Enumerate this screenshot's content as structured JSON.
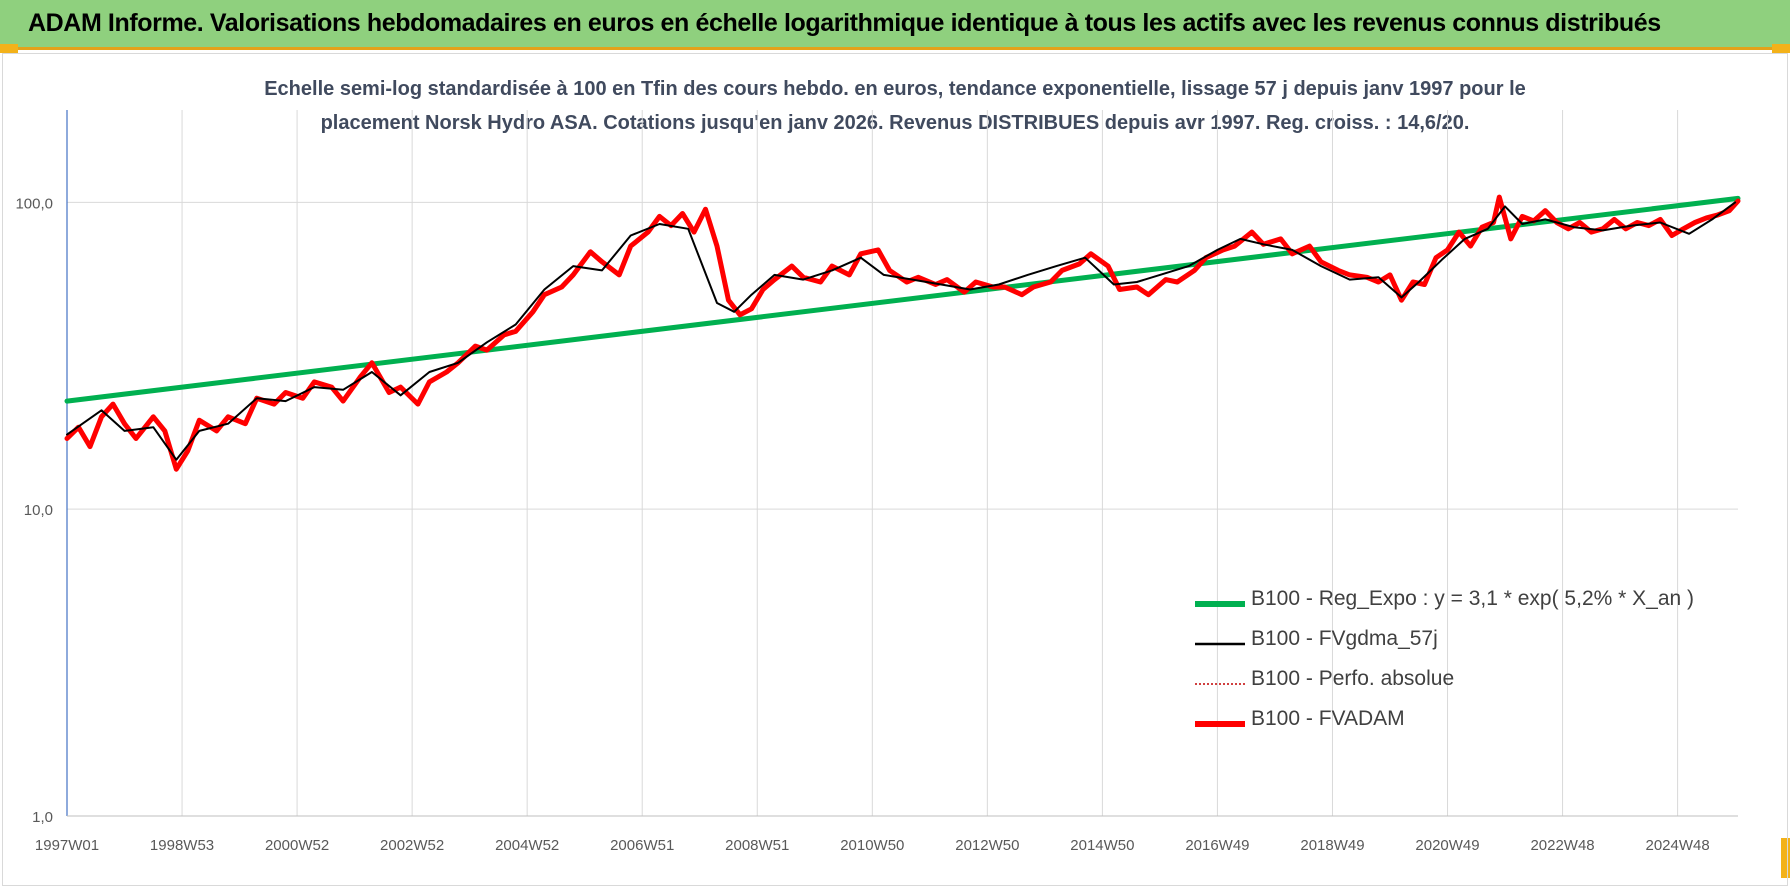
{
  "banner": {
    "title": "ADAM Informe. Valorisations hebdomadaires en euros en échelle logarithmique identique à tous les actifs avec les revenus connus distribués",
    "color": "#8fd07e"
  },
  "chart_data": {
    "type": "line",
    "title_line1": "Echelle semi-log standardisée à 100 en Tfin des cours hebdo. en euros, tendance exponentielle, lissage 57 j depuis janv 1997 pour le",
    "title_line2": "placement Norsk Hydro ASA. Cotations jusqu'en janv 2026. Revenus DISTRIBUES depuis avr 1997. Reg. croiss. : 14,6/20.",
    "y_scale": "log",
    "ylim": [
      1,
      200
    ],
    "y_ticks": [
      1,
      10,
      100
    ],
    "y_tick_labels": [
      "1,0",
      "10,0",
      "100,0"
    ],
    "xlim": [
      1997.0,
      2026.05
    ],
    "x_ticks": [
      1997.0,
      1999.0,
      2001.0,
      2003.0,
      2005.0,
      2007.0,
      2009.0,
      2011.0,
      2013.0,
      2015.0,
      2017.0,
      2019.0,
      2021.0,
      2023.0,
      2025.0
    ],
    "x_tick_labels": [
      "1997W01",
      "1998W53",
      "2000W52",
      "2002W52",
      "2004W52",
      "2006W51",
      "2008W51",
      "2010W50",
      "2012W50",
      "2014W50",
      "2016W49",
      "2018W49",
      "2020W49",
      "2022W48",
      "2024W48"
    ],
    "grid": true,
    "legend_position": "lower-right",
    "series": [
      {
        "name": "B100 - Reg_Expo : y = 3,1 * exp( 5,2% *  X_an )",
        "color": "#00b050",
        "style": "solid-thick",
        "x": [
          1997.0,
          2026.05
        ],
        "y": [
          22.5,
          103.0
        ]
      },
      {
        "name": "B100 - FVgdma_57j",
        "color": "#000000",
        "style": "solid-thin",
        "x": [
          1997.0,
          1997.6,
          1998.0,
          1998.5,
          1998.9,
          1999.3,
          1999.8,
          2000.3,
          2000.8,
          2001.3,
          2001.8,
          2002.3,
          2002.8,
          2003.3,
          2003.8,
          2004.3,
          2004.8,
          2005.3,
          2005.8,
          2006.3,
          2006.8,
          2007.3,
          2007.8,
          2008.3,
          2008.6,
          2008.9,
          2009.3,
          2009.8,
          2010.3,
          2010.8,
          2011.2,
          2011.7,
          2012.2,
          2012.7,
          2013.2,
          2013.7,
          2014.2,
          2014.7,
          2015.2,
          2015.6,
          2016.0,
          2016.5,
          2017.0,
          2017.4,
          2017.8,
          2018.3,
          2018.8,
          2019.3,
          2019.8,
          2020.2,
          2020.5,
          2020.9,
          2021.3,
          2021.7,
          2022.0,
          2022.3,
          2022.7,
          2023.2,
          2023.7,
          2024.2,
          2024.7,
          2025.2,
          2025.6,
          2026.0
        ],
        "y": [
          17.5,
          21.0,
          18.0,
          18.5,
          14.5,
          18.0,
          19.0,
          23.0,
          22.5,
          25.0,
          24.5,
          28.0,
          23.5,
          28.0,
          30.0,
          35.0,
          40.0,
          52.0,
          62.0,
          60.0,
          78.0,
          85.0,
          82.0,
          47.0,
          44.0,
          50.0,
          58.0,
          56.0,
          60.0,
          66.0,
          58.0,
          56.0,
          54.0,
          52.0,
          54.0,
          58.0,
          62.0,
          66.0,
          54.0,
          55.0,
          58.0,
          62.0,
          70.0,
          76.0,
          73.0,
          70.0,
          62.0,
          56.0,
          57.0,
          49.0,
          55.0,
          65.0,
          76.0,
          82.0,
          97.0,
          85.0,
          88.0,
          83.0,
          81.0,
          84.0,
          86.0,
          79.0,
          88.0,
          100.0
        ]
      },
      {
        "name": "B100 - Perfo. absolue",
        "color": "#c00000",
        "style": "dotted",
        "x": [],
        "y": []
      },
      {
        "name": "B100 - FVADAM",
        "color": "#ff0000",
        "style": "solid-thick",
        "x": [
          1997.0,
          1997.2,
          1997.4,
          1997.6,
          1997.8,
          1998.0,
          1998.2,
          1998.5,
          1998.7,
          1998.9,
          1999.1,
          1999.3,
          1999.6,
          1999.8,
          2000.1,
          2000.3,
          2000.6,
          2000.8,
          2001.1,
          2001.3,
          2001.6,
          2001.8,
          2002.1,
          2002.3,
          2002.6,
          2002.8,
          2003.1,
          2003.3,
          2003.6,
          2003.8,
          2004.1,
          2004.3,
          2004.6,
          2004.8,
          2005.1,
          2005.3,
          2005.6,
          2005.8,
          2006.1,
          2006.3,
          2006.6,
          2006.8,
          2007.1,
          2007.3,
          2007.5,
          2007.7,
          2007.9,
          2008.1,
          2008.3,
          2008.5,
          2008.7,
          2008.9,
          2009.1,
          2009.3,
          2009.6,
          2009.8,
          2010.1,
          2010.3,
          2010.6,
          2010.8,
          2011.1,
          2011.3,
          2011.6,
          2011.8,
          2012.1,
          2012.3,
          2012.6,
          2012.8,
          2013.1,
          2013.3,
          2013.6,
          2013.8,
          2014.1,
          2014.3,
          2014.6,
          2014.8,
          2015.1,
          2015.3,
          2015.6,
          2015.8,
          2016.1,
          2016.3,
          2016.6,
          2016.8,
          2017.1,
          2017.3,
          2017.6,
          2017.8,
          2018.1,
          2018.3,
          2018.6,
          2018.8,
          2019.1,
          2019.3,
          2019.6,
          2019.8,
          2020.0,
          2020.2,
          2020.4,
          2020.6,
          2020.8,
          2021.0,
          2021.2,
          2021.4,
          2021.6,
          2021.8,
          2021.9,
          2022.1,
          2022.3,
          2022.5,
          2022.7,
          2022.9,
          2023.1,
          2023.3,
          2023.5,
          2023.7,
          2023.9,
          2024.1,
          2024.3,
          2024.5,
          2024.7,
          2024.9,
          2025.1,
          2025.3,
          2025.5,
          2025.7,
          2025.9,
          2026.05
        ],
        "y": [
          17.0,
          18.5,
          16.0,
          20.0,
          22.0,
          19.0,
          17.0,
          20.0,
          18.0,
          13.5,
          15.5,
          19.5,
          18.0,
          20.0,
          19.0,
          23.0,
          22.0,
          24.0,
          23.0,
          26.0,
          25.0,
          22.5,
          27.0,
          30.0,
          24.0,
          25.0,
          22.0,
          26.0,
          28.0,
          30.0,
          34.0,
          33.0,
          37.0,
          38.0,
          44.0,
          50.0,
          53.0,
          58.0,
          69.0,
          64.0,
          58.0,
          72.0,
          80.0,
          90.0,
          84.0,
          92.0,
          80.0,
          95.0,
          72.0,
          48.0,
          43.0,
          45.0,
          52.0,
          56.0,
          62.0,
          57.0,
          55.0,
          62.0,
          58.0,
          68.0,
          70.0,
          60.0,
          55.0,
          57.0,
          54.0,
          56.0,
          51.0,
          55.0,
          53.0,
          53.0,
          50.0,
          53.0,
          55.0,
          60.0,
          63.0,
          68.0,
          62.0,
          52.0,
          53.0,
          50.0,
          56.0,
          55.0,
          60.0,
          66.0,
          70.0,
          72.0,
          80.0,
          73.0,
          76.0,
          68.0,
          72.0,
          64.0,
          60.0,
          58.0,
          57.0,
          55.0,
          58.0,
          48.0,
          55.0,
          54.0,
          66.0,
          70.0,
          80.0,
          72.0,
          83.0,
          86.0,
          104.0,
          76.0,
          90.0,
          87.0,
          94.0,
          86.0,
          82.0,
          86.0,
          80.0,
          82.0,
          88.0,
          82.0,
          86.0,
          84.0,
          88.0,
          78.0,
          82.0,
          86.0,
          89.0,
          91.0,
          94.0,
          101.0
        ]
      }
    ]
  }
}
